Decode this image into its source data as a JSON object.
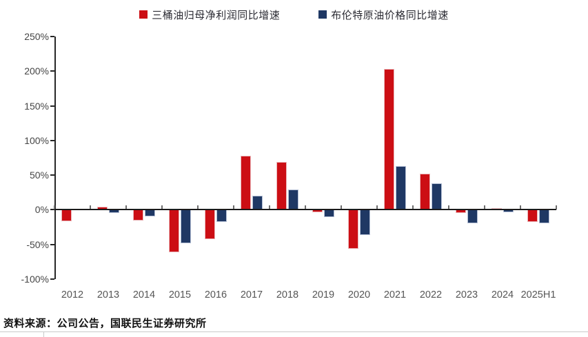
{
  "legend": [
    {
      "label": "三桶油归母净利润同比增速",
      "color": "#CC0E14"
    },
    {
      "label": "布伦特原油价格同比增速",
      "color": "#1F3864"
    }
  ],
  "source": "资料来源：公司公告，国联民生证券研究所",
  "chart_data": {
    "type": "bar",
    "title": "",
    "xlabel": "",
    "ylabel": "",
    "categories": [
      "2012",
      "2013",
      "2014",
      "2015",
      "2016",
      "2017",
      "2018",
      "2019",
      "2020",
      "2021",
      "2022",
      "2023",
      "2024",
      "2025H1"
    ],
    "series": [
      {
        "name": "三桶油归母净利润同比增速",
        "color": "#CC0E14",
        "values": [
          -16,
          4,
          -15,
          -61,
          -42,
          78,
          69,
          -4,
          -56,
          203,
          52,
          -5,
          2,
          -17
        ]
      },
      {
        "name": "布伦特原油价格同比增速",
        "color": "#1F3864",
        "values": [
          1,
          -5,
          -10,
          -48,
          -17,
          20,
          29,
          -11,
          -36,
          63,
          38,
          -19,
          -4,
          -19
        ]
      }
    ],
    "ylim": [
      -100,
      250
    ],
    "ytick_step": 50,
    "ytick_labels": [
      "250%",
      "200%",
      "150%",
      "100%",
      "50%",
      "0%",
      "-50%",
      "-100%"
    ],
    "grid": false,
    "legend_position": "top"
  }
}
